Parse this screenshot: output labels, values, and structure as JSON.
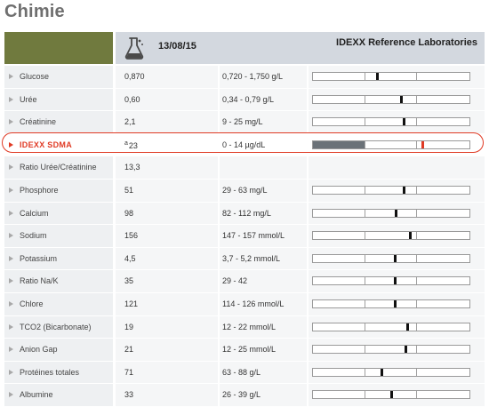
{
  "page": {
    "title": "Chimie"
  },
  "header": {
    "date": "13/08/15",
    "lab": "IDEXX Reference Laboratories",
    "icon": "flask-icon"
  },
  "colors": {
    "header_green": "#707a3e",
    "header_gray": "#d3d8df",
    "sdma_accent": "#e03a24",
    "sdma_fill": "#6b7278"
  },
  "rows": [
    {
      "name": "Glucose",
      "value": "0,870",
      "range": "0,720 - 1,750 g/L",
      "has_bar": true,
      "marker": 0.41
    },
    {
      "name": "Urée",
      "value": "0,60",
      "range": "0,34 - 0,79 g/L",
      "has_bar": true,
      "marker": 0.56
    },
    {
      "name": "Créatinine",
      "value": "2,1",
      "range": "9 - 25 mg/L",
      "has_bar": true,
      "marker": 0.58
    },
    {
      "name": "IDEXX SDMA",
      "value_sup": "a",
      "value": "23",
      "range": "0 - 14 µg/dL",
      "has_bar": true,
      "marker": 0.7,
      "fill": 0.33,
      "highlight": true
    },
    {
      "name": "Ratio Urée/Créatinine",
      "value": "13,3",
      "range": "",
      "has_bar": false
    },
    {
      "name": "Phosphore",
      "value": "51",
      "range": "29 - 63 mg/L",
      "has_bar": true,
      "marker": 0.58
    },
    {
      "name": "Calcium",
      "value": "98",
      "range": "82 - 112 mg/L",
      "has_bar": true,
      "marker": 0.53
    },
    {
      "name": "Sodium",
      "value": "156",
      "range": "147 - 157 mmol/L",
      "has_bar": true,
      "marker": 0.62
    },
    {
      "name": "Potassium",
      "value": "4,5",
      "range": "3,7 - 5,2 mmol/L",
      "has_bar": true,
      "marker": 0.52
    },
    {
      "name": "Ratio Na/K",
      "value": "35",
      "range": "29 - 42",
      "has_bar": true,
      "marker": 0.52
    },
    {
      "name": "Chlore",
      "value": "121",
      "range": "114 - 126 mmol/L",
      "has_bar": true,
      "marker": 0.52
    },
    {
      "name": "TCO2 (Bicarbonate)",
      "value": "19",
      "range": "12 - 22 mmol/L",
      "has_bar": true,
      "marker": 0.6
    },
    {
      "name": "Anion Gap",
      "value": "21",
      "range": "12 - 25 mmol/L",
      "has_bar": true,
      "marker": 0.59
    },
    {
      "name": "Protéines totales",
      "value": "71",
      "range": "63 - 88 g/L",
      "has_bar": true,
      "marker": 0.44
    },
    {
      "name": "Albumine",
      "value": "33",
      "range": "26 - 39 g/L",
      "has_bar": true,
      "marker": 0.5
    }
  ]
}
